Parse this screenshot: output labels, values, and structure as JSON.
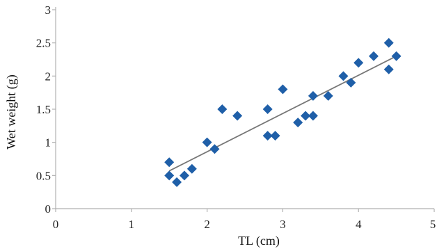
{
  "chart_data": {
    "type": "scatter",
    "title": "",
    "xlabel": "TL (cm)",
    "ylabel": "Wet weight (g)",
    "xlim": [
      0,
      5
    ],
    "ylim": [
      0,
      3
    ],
    "x_ticks": [
      "0",
      "1",
      "2",
      "3",
      "4",
      "5"
    ],
    "y_ticks": [
      "0",
      "0.5",
      "1",
      "1.5",
      "2",
      "2.5",
      "3"
    ],
    "grid": false,
    "legend": "none",
    "marker": "diamond",
    "marker_color": "#1f5fa8",
    "trendline_color": "#777777",
    "series": [
      {
        "points": [
          {
            "x": 1.5,
            "y": 0.7
          },
          {
            "x": 1.5,
            "y": 0.5
          },
          {
            "x": 1.6,
            "y": 0.4
          },
          {
            "x": 1.7,
            "y": 0.5
          },
          {
            "x": 1.8,
            "y": 0.6
          },
          {
            "x": 2.0,
            "y": 1.0
          },
          {
            "x": 2.1,
            "y": 0.9
          },
          {
            "x": 2.2,
            "y": 1.5
          },
          {
            "x": 2.4,
            "y": 1.4
          },
          {
            "x": 2.8,
            "y": 1.5
          },
          {
            "x": 2.8,
            "y": 1.1
          },
          {
            "x": 2.9,
            "y": 1.1
          },
          {
            "x": 3.0,
            "y": 1.8
          },
          {
            "x": 3.2,
            "y": 1.3
          },
          {
            "x": 3.3,
            "y": 1.4
          },
          {
            "x": 3.4,
            "y": 1.4
          },
          {
            "x": 3.4,
            "y": 1.7
          },
          {
            "x": 3.6,
            "y": 1.7
          },
          {
            "x": 3.8,
            "y": 2.0
          },
          {
            "x": 3.9,
            "y": 1.9
          },
          {
            "x": 4.0,
            "y": 2.2
          },
          {
            "x": 4.2,
            "y": 2.3
          },
          {
            "x": 4.4,
            "y": 2.5
          },
          {
            "x": 4.4,
            "y": 2.1
          },
          {
            "x": 4.5,
            "y": 2.3
          }
        ]
      }
    ],
    "trendline": {
      "x": [
        1.5,
        4.5
      ],
      "y": [
        0.57,
        2.3
      ]
    }
  }
}
